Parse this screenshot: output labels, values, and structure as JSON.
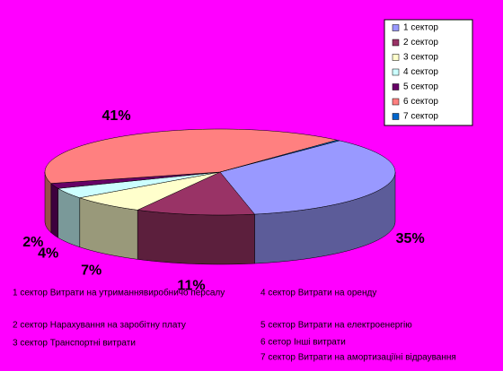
{
  "chart_data": {
    "type": "pie3d",
    "series": [
      {
        "name": "1 сектор",
        "color": "#9999ff",
        "values": [
          35
        ],
        "value_labels": [
          "35%"
        ]
      },
      {
        "name": "2 сектор",
        "color": "#993366",
        "values": [
          11
        ],
        "value_labels": [
          "11%"
        ]
      },
      {
        "name": "3 сектор",
        "color": "#ffffcc",
        "values": [
          7
        ],
        "value_labels": [
          "7%"
        ]
      },
      {
        "name": "4 сектор",
        "color": "#ccffff",
        "values": [
          4
        ],
        "value_labels": [
          "4%"
        ]
      },
      {
        "name": "5 сектор",
        "color": "#660066",
        "values": [
          2
        ],
        "value_labels": [
          "2%"
        ]
      },
      {
        "name": "6 сектор",
        "color": "#ff8080",
        "values": [
          41
        ],
        "value_labels": [
          "41%"
        ]
      },
      {
        "name": "7 сектор",
        "color": "#0066cc",
        "values": [
          0.3
        ],
        "value_labels": [
          null
        ]
      }
    ],
    "notes": [
      "1 сектор Витрати на утриманнявиробничо персалу",
      "2 сектор Нарахування на заробітну плату",
      "3 сектор Транспортні витрати",
      "4 сектор Витрати на оренду",
      "5 сектор Витрати на електроенергію",
      "6 сетор Інші витрати",
      "7 сектор Витрати на амортизаціїні відраування"
    ]
  }
}
